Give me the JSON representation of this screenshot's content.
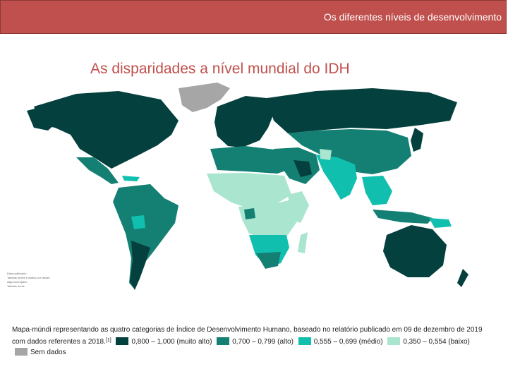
{
  "header": {
    "title": "Os diferentes níveis de desenvolvimento"
  },
  "slide": {
    "title": "As disparidades a nível mundial do IDH"
  },
  "map": {
    "source_note": [
      "Data publicado:",
      "Tabelas fontes e dados por classe",
      "Algo incompleto",
      "Tabelas: fonte"
    ]
  },
  "legend": {
    "caption_prefix": "Mapa-múndi representando as quatro categorias de Índice de Desenvolvimento Humano, baseado no relatório publicado em 09 de dezembro de 2019 com dados referentes a 2018.",
    "footnote": "[1]",
    "categories": [
      {
        "label": "0,800 – 1,000 (muito alto)",
        "color": "#04403e"
      },
      {
        "label": "0,700 – 0,799 (alto)",
        "color": "#138073"
      },
      {
        "label": "0,555 – 0,699 (médio)",
        "color": "#11bfae"
      },
      {
        "label": "0,350 – 0,554 (baixo)",
        "color": "#a9e5cf"
      },
      {
        "label": "Sem dados",
        "color": "#a6a6a6"
      }
    ]
  }
}
